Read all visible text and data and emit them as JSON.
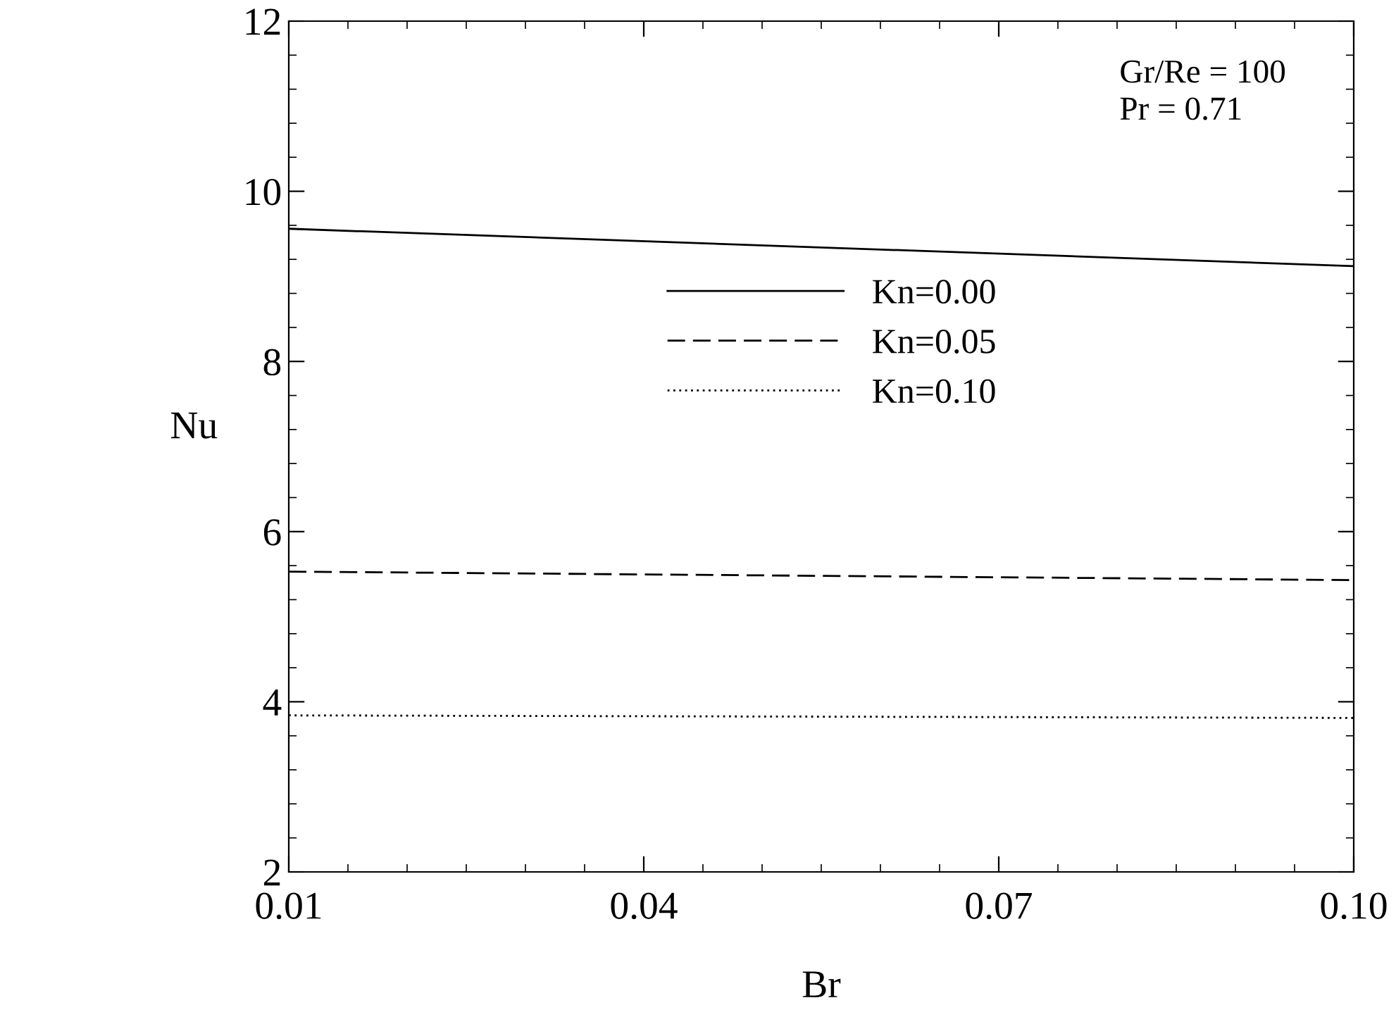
{
  "chart_data": {
    "type": "line",
    "xlabel": "Br",
    "ylabel": "Nu",
    "x": [
      0.01,
      0.1
    ],
    "xlim": [
      0.01,
      0.1
    ],
    "xticks": [
      {
        "value": 0.01,
        "label": "0.01"
      },
      {
        "value": 0.04,
        "label": "0.04"
      },
      {
        "value": 0.07,
        "label": "0.07"
      },
      {
        "value": 0.1,
        "label": "0.10"
      }
    ],
    "ylim": [
      2,
      12
    ],
    "yticks": [
      2,
      4,
      6,
      8,
      10,
      12
    ],
    "series": [
      {
        "name": "Kn=0.00",
        "color": "#000000",
        "line_style": "solid",
        "values": [
          9.56,
          9.12
        ]
      },
      {
        "name": "Kn=0.05",
        "color": "#000000",
        "line_style": "dashed",
        "values": [
          5.53,
          5.43
        ]
      },
      {
        "name": "Kn=0.10",
        "color": "#000000",
        "line_style": "dotted",
        "values": [
          3.84,
          3.81
        ]
      }
    ],
    "legend": "center",
    "grid": false,
    "marker": "none",
    "annotations": [
      "Gr/Re = 100\nPr = 0.71"
    ]
  }
}
